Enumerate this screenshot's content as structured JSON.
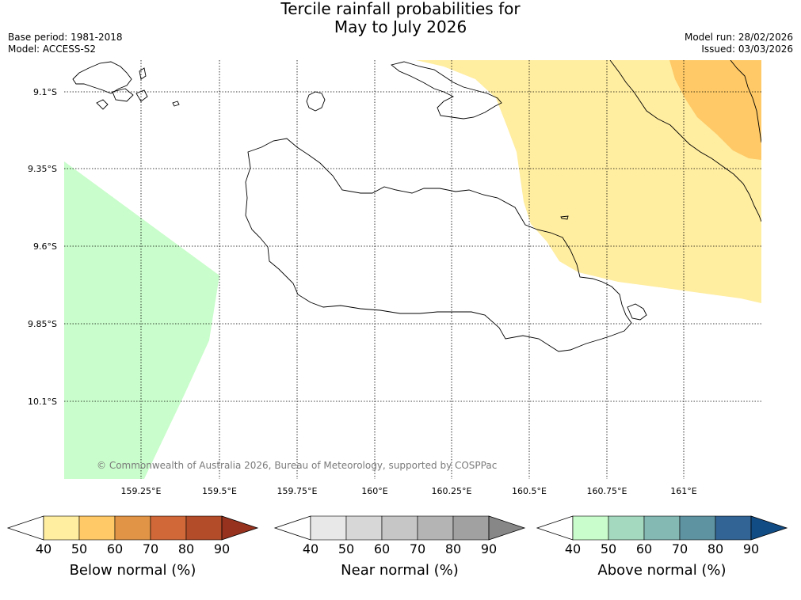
{
  "header": {
    "title_line1": "Tercile rainfall probabilities for",
    "title_line2": "May to July 2026",
    "base_period": "Base period: 1981-2018",
    "model": "Model: ACCESS-S2",
    "model_run": "Model run: 28/02/2026",
    "issued": "Issued: 03/03/2026"
  },
  "map": {
    "lat_ticks": [
      "9.1°S",
      "9.35°S",
      "9.6°S",
      "9.85°S",
      "10.1°S"
    ],
    "lon_ticks": [
      "159.25°E",
      "159.5°E",
      "159.75°E",
      "160°E",
      "160.25°E",
      "160.5°E",
      "160.75°E",
      "161°E"
    ],
    "copyright": "© Commonwealth of Australia 2026, Bureau of Meteorology, supported by COSPPac"
  },
  "colorbars": [
    {
      "label": "Below normal (%)",
      "ticks": [
        "40",
        "50",
        "60",
        "70",
        "80",
        "90"
      ],
      "colors": [
        "#ffffff",
        "#ffeda0",
        "#fec966",
        "#e29446",
        "#d06838",
        "#b34d29",
        "#96321e"
      ]
    },
    {
      "label": "Near normal (%)",
      "ticks": [
        "40",
        "50",
        "60",
        "70",
        "80",
        "90"
      ],
      "colors": [
        "#ffffff",
        "#e8e8e8",
        "#d7d7d7",
        "#c6c6c6",
        "#b4b4b4",
        "#a1a1a1",
        "#878787"
      ]
    },
    {
      "label": "Above normal (%)",
      "ticks": [
        "40",
        "50",
        "60",
        "70",
        "80",
        "90"
      ],
      "colors": [
        "#ffffff",
        "#c9fdcb",
        "#a5d9bf",
        "#84b8b3",
        "#5e94a2",
        "#326595",
        "#124c84"
      ]
    }
  ],
  "shading": {
    "below_50_color": "#ffeda0",
    "below_60_color": "#fec966",
    "above_50_color": "#c9fdcb"
  }
}
